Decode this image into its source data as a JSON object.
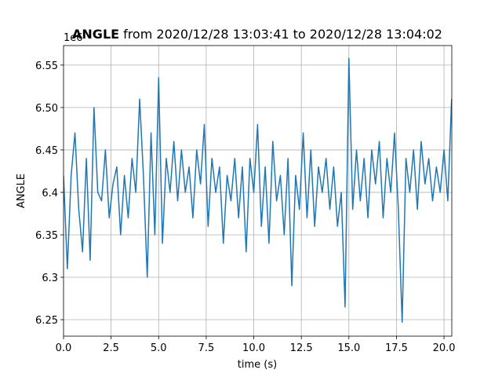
{
  "chart_data": {
    "type": "line",
    "title": "ANGLE",
    "subtitle": "from 2020/12/28 13:03:41 to 2020/12/28 13:04:02",
    "offset_text": "1e6",
    "xlabel": "time (s)",
    "ylabel": "ANGLE",
    "grid": true,
    "xlim": [
      0,
      20.41
    ],
    "ylim": [
      6.2306,
      6.573
    ],
    "xticks": [
      {
        "value": 0,
        "label": "0.0"
      },
      2.5,
      {
        "value": 5,
        "label": "5.0"
      },
      7.5,
      {
        "value": 10,
        "label": "10.0"
      },
      12.5,
      {
        "value": 15,
        "label": "15.0"
      },
      17.5,
      {
        "value": 20,
        "label": "20.0"
      }
    ],
    "yticks": [
      6.25,
      6.3,
      6.35,
      6.4,
      6.45,
      {
        "value": 6.5,
        "label": "6.50"
      },
      6.55
    ],
    "x": [
      0,
      0.2,
      0.4,
      0.6,
      0.8,
      1.0,
      1.2,
      1.4,
      1.6,
      1.8,
      2.0,
      2.2,
      2.4,
      2.6,
      2.8,
      3.0,
      3.2,
      3.4,
      3.6,
      3.8,
      4.0,
      4.2,
      4.4,
      4.6,
      4.8,
      5.0,
      5.2,
      5.4,
      5.6,
      5.8,
      6.0,
      6.2,
      6.4,
      6.6,
      6.8,
      7.0,
      7.2,
      7.4,
      7.6,
      7.8,
      8.0,
      8.2,
      8.4,
      8.6,
      8.8,
      9.0,
      9.2,
      9.4,
      9.6,
      9.8,
      10.0,
      10.2,
      10.4,
      10.6,
      10.8,
      11.0,
      11.2,
      11.4,
      11.6,
      11.8,
      12.0,
      12.2,
      12.4,
      12.6,
      12.8,
      13.0,
      13.2,
      13.4,
      13.6,
      13.8,
      14.0,
      14.2,
      14.4,
      14.6,
      14.8,
      15.0,
      15.2,
      15.4,
      15.6,
      15.8,
      16.0,
      16.2,
      16.4,
      16.6,
      16.8,
      17.0,
      17.2,
      17.4,
      17.6,
      17.8,
      18.0,
      18.2,
      18.4,
      18.6,
      18.8,
      19.0,
      19.2,
      19.4,
      19.6,
      19.8,
      20.0,
      20.2,
      20.4
    ],
    "series": [
      {
        "name": "ANGLE",
        "color": "#1f77b4",
        "values": [
          6.42,
          6.31,
          6.42,
          6.47,
          6.38,
          6.33,
          6.44,
          6.32,
          6.5,
          6.4,
          6.39,
          6.45,
          6.37,
          6.41,
          6.43,
          6.35,
          6.42,
          6.37,
          6.44,
          6.4,
          6.51,
          6.42,
          6.3,
          6.47,
          6.35,
          6.535,
          6.34,
          6.44,
          6.4,
          6.46,
          6.39,
          6.45,
          6.4,
          6.43,
          6.37,
          6.45,
          6.41,
          6.48,
          6.36,
          6.44,
          6.4,
          6.43,
          6.34,
          6.42,
          6.39,
          6.44,
          6.37,
          6.43,
          6.33,
          6.44,
          6.4,
          6.48,
          6.36,
          6.43,
          6.34,
          6.46,
          6.39,
          6.42,
          6.35,
          6.44,
          6.29,
          6.42,
          6.38,
          6.47,
          6.37,
          6.45,
          6.36,
          6.43,
          6.4,
          6.44,
          6.38,
          6.43,
          6.36,
          6.4,
          6.265,
          6.558,
          6.38,
          6.45,
          6.39,
          6.44,
          6.37,
          6.45,
          6.41,
          6.46,
          6.37,
          6.44,
          6.4,
          6.47,
          6.38,
          6.247,
          6.44,
          6.4,
          6.45,
          6.38,
          6.46,
          6.41,
          6.44,
          6.39,
          6.43,
          6.4,
          6.45,
          6.39,
          6.51
        ]
      }
    ]
  }
}
